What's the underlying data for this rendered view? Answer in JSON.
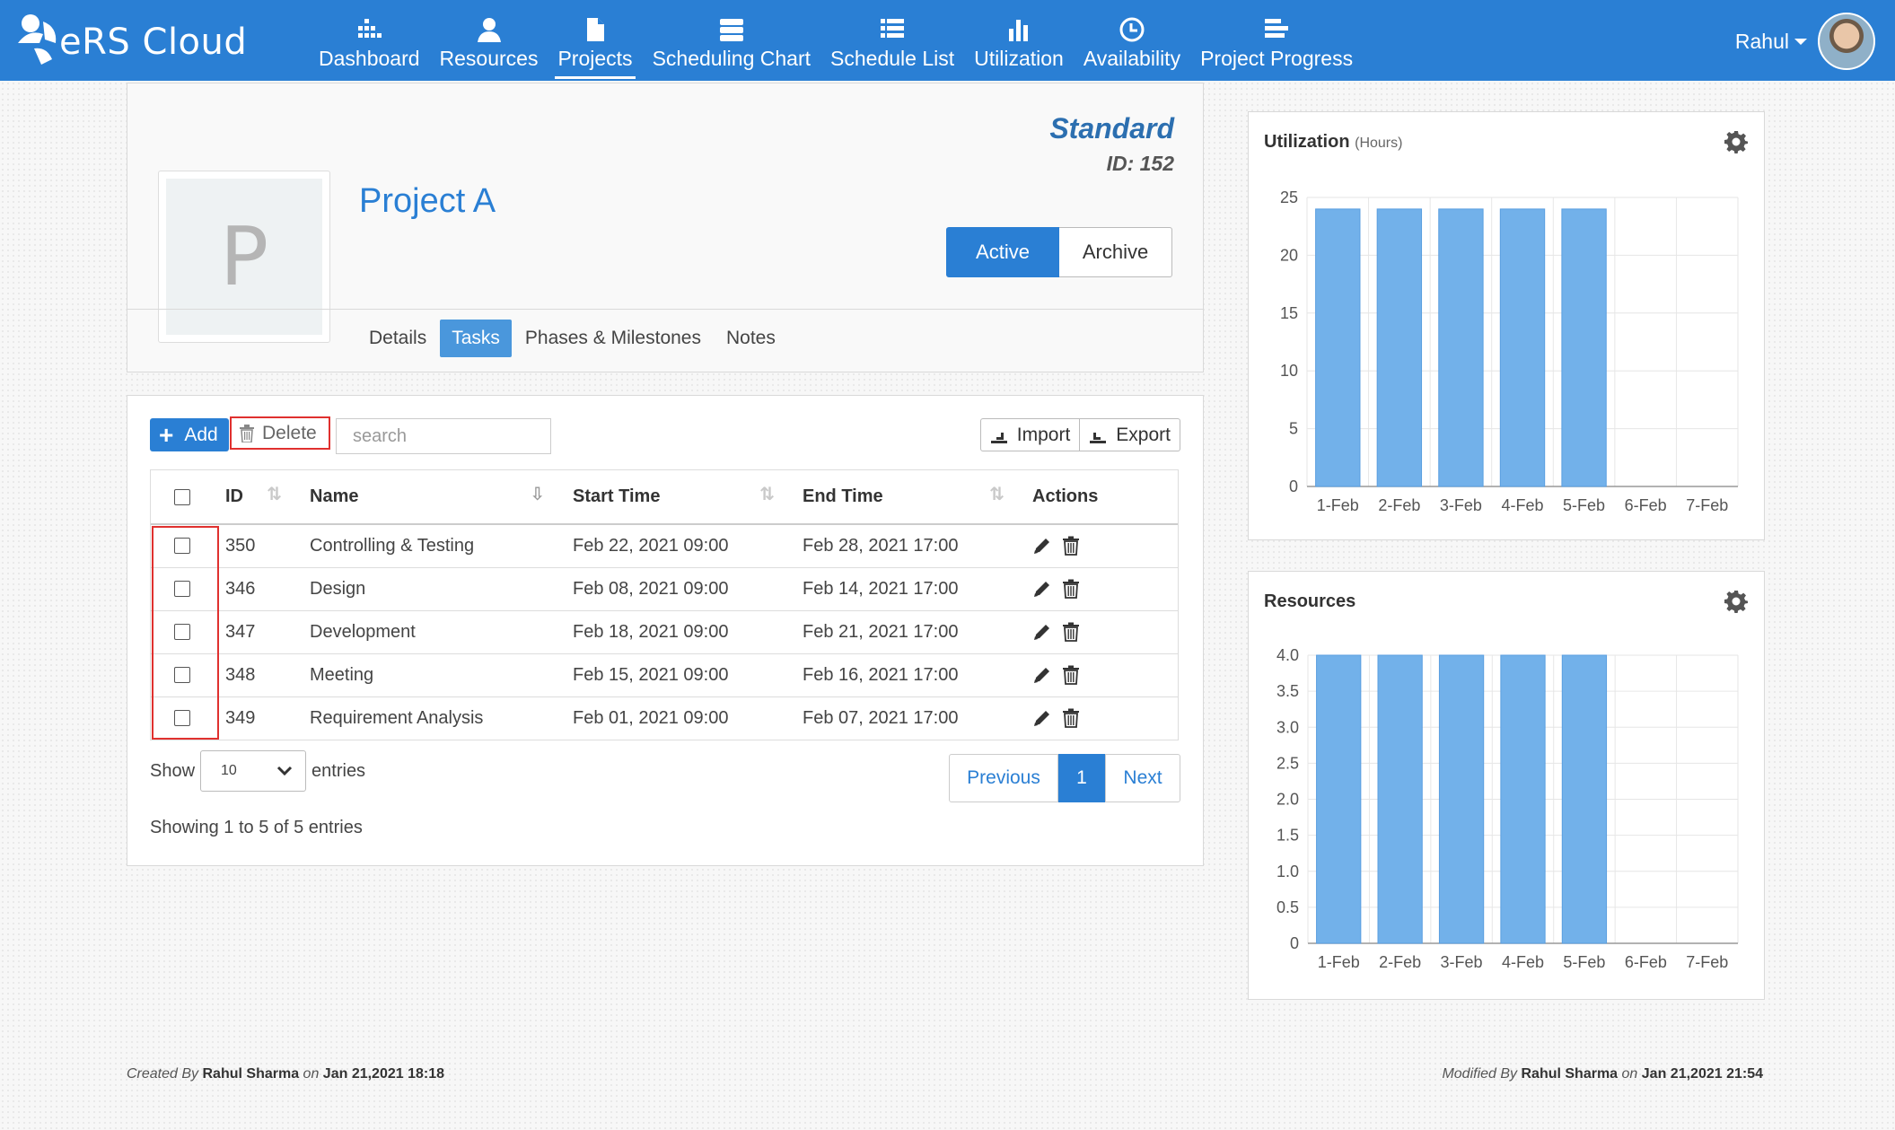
{
  "app": {
    "logo_text": "eRS Cloud",
    "user_name": "Rahul"
  },
  "nav": [
    {
      "label": "Dashboard",
      "icon": "dashboard-icon"
    },
    {
      "label": "Resources",
      "icon": "user-icon"
    },
    {
      "label": "Projects",
      "icon": "file-icon"
    },
    {
      "label": "Scheduling Chart",
      "icon": "server-icon"
    },
    {
      "label": "Schedule List",
      "icon": "list-icon"
    },
    {
      "label": "Utilization",
      "icon": "bar-chart-icon"
    },
    {
      "label": "Availability",
      "icon": "clock-icon"
    },
    {
      "label": "Project Progress",
      "icon": "progress-icon"
    }
  ],
  "project": {
    "initial": "P",
    "title": "Project A",
    "plan_type": "Standard",
    "id_label": "ID: 152",
    "active_label": "Active",
    "archive_label": "Archive",
    "tabs": [
      "Details",
      "Tasks",
      "Phases & Milestones",
      "Notes"
    ]
  },
  "tasks": {
    "add_label": "Add",
    "delete_label": "Delete",
    "search_placeholder": "search",
    "import_label": "Import",
    "export_label": "Export",
    "columns": [
      "ID",
      "Name",
      "Start Time",
      "End Time",
      "Actions"
    ],
    "rows": [
      {
        "id": "350",
        "name": "Controlling & Testing",
        "start": "Feb 22, 2021 09:00",
        "end": "Feb 28, 2021 17:00"
      },
      {
        "id": "346",
        "name": "Design",
        "start": "Feb 08, 2021 09:00",
        "end": "Feb 14, 2021 17:00"
      },
      {
        "id": "347",
        "name": "Development",
        "start": "Feb 18, 2021 09:00",
        "end": "Feb 21, 2021 17:00"
      },
      {
        "id": "348",
        "name": "Meeting",
        "start": "Feb 15, 2021 09:00",
        "end": "Feb 16, 2021 17:00"
      },
      {
        "id": "349",
        "name": "Requirement Analysis",
        "start": "Feb 01, 2021 09:00",
        "end": "Feb 07, 2021 17:00"
      }
    ],
    "show_label": "Show",
    "page_size": "10",
    "entries_label": "entries",
    "prev_label": "Previous",
    "current_page": "1",
    "next_label": "Next",
    "info": "Showing 1 to 5 of 5 entries"
  },
  "charts": {
    "utilization": {
      "title": "Utilization",
      "subtitle": "(Hours)"
    },
    "resources": {
      "title": "Resources"
    }
  },
  "chart_data": [
    {
      "type": "bar",
      "title": "Utilization (Hours)",
      "categories": [
        "1-Feb",
        "2-Feb",
        "3-Feb",
        "4-Feb",
        "5-Feb",
        "6-Feb",
        "7-Feb"
      ],
      "values": [
        24,
        24,
        24,
        24,
        24,
        0,
        0
      ],
      "ylim": [
        0,
        25
      ],
      "yticks": [
        "0",
        "5",
        "10",
        "15",
        "20",
        "25"
      ],
      "color": "#72b1ea"
    },
    {
      "type": "bar",
      "title": "Resources",
      "categories": [
        "1-Feb",
        "2-Feb",
        "3-Feb",
        "4-Feb",
        "5-Feb",
        "6-Feb",
        "7-Feb"
      ],
      "values": [
        4,
        4,
        4,
        4,
        4,
        0,
        0
      ],
      "ylim": [
        0,
        4
      ],
      "yticks": [
        "0",
        "0.5",
        "1.0",
        "1.5",
        "2.0",
        "2.5",
        "3.0",
        "3.5",
        "4.0"
      ],
      "color": "#72b1ea"
    }
  ],
  "footer": {
    "created_prefix": "Created By",
    "created_by": "Rahul Sharma",
    "created_on_word": "on",
    "created_date": "Jan 21,2021 18:18",
    "modified_prefix": "Modified By",
    "modified_by": "Rahul Sharma",
    "modified_on_word": "on",
    "modified_date": "Jan 21,2021 21:54"
  }
}
